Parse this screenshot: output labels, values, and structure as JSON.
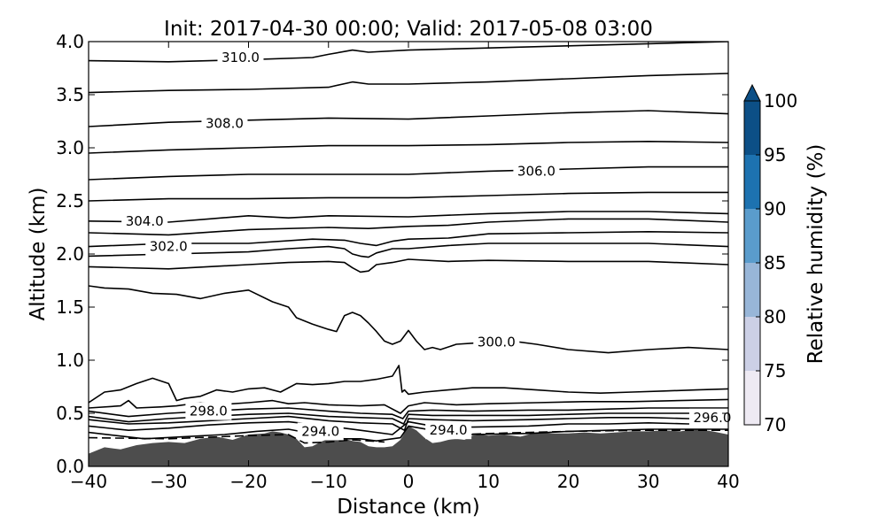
{
  "chart_data": {
    "type": "line",
    "title": "Init: 2017-04-30 00:00; Valid: 2017-05-08 03:00",
    "xlabel": "Distance (km)",
    "ylabel": "Altitude (km)",
    "xlim": [
      -40,
      40
    ],
    "ylim": [
      0.0,
      4.0
    ],
    "x_ticks": [
      -40,
      -30,
      -20,
      -10,
      0,
      10,
      20,
      30,
      40
    ],
    "x_tick_labels": [
      "−40",
      "−30",
      "−20",
      "−10",
      "0",
      "10",
      "20",
      "30",
      "40"
    ],
    "y_ticks": [
      0.0,
      0.5,
      1.0,
      1.5,
      2.0,
      2.5,
      3.0,
      3.5,
      4.0
    ],
    "y_tick_labels": [
      "0.0",
      "0.5",
      "1.0",
      "1.5",
      "2.0",
      "2.5",
      "3.0",
      "3.5",
      "4.0"
    ],
    "grid": false,
    "terrain": {
      "color": "#4d4d4d",
      "x": [
        -40,
        -38,
        -36,
        -34,
        -32,
        -30,
        -28,
        -26,
        -24,
        -22,
        -20,
        -18,
        -17,
        -16,
        -15,
        -14,
        -13,
        -12,
        -11,
        -10,
        -9,
        -8,
        -7,
        -6,
        -5,
        -4,
        -3,
        -2,
        -1,
        0,
        1,
        2,
        3,
        4,
        5,
        6,
        7,
        8,
        9,
        10,
        12,
        14,
        16,
        18,
        20,
        22,
        24,
        26,
        28,
        30,
        32,
        34,
        36,
        38,
        40
      ],
      "y": [
        0.12,
        0.18,
        0.16,
        0.2,
        0.22,
        0.23,
        0.22,
        0.26,
        0.28,
        0.25,
        0.3,
        0.31,
        0.33,
        0.32,
        0.3,
        0.26,
        0.18,
        0.19,
        0.23,
        0.26,
        0.27,
        0.26,
        0.24,
        0.23,
        0.19,
        0.18,
        0.18,
        0.19,
        0.25,
        0.38,
        0.34,
        0.27,
        0.22,
        0.23,
        0.25,
        0.26,
        0.25,
        0.29,
        0.3,
        0.29,
        0.3,
        0.28,
        0.32,
        0.31,
        0.31,
        0.32,
        0.31,
        0.32,
        0.33,
        0.33,
        0.34,
        0.33,
        0.35,
        0.33,
        0.3
      ]
    },
    "contours": [
      {
        "x": [
          -40,
          -33,
          -28,
          -23,
          -19,
          -15,
          -10,
          -8,
          -6,
          -5,
          -4,
          -2,
          -1,
          0,
          3,
          8,
          15,
          20,
          25,
          30,
          35,
          40
        ],
        "y": [
          0.32,
          0.26,
          0.28,
          0.3,
          0.33,
          0.35,
          0.28,
          0.26,
          0.26,
          0.25,
          0.24,
          0.26,
          0.27,
          0.38,
          0.34,
          0.3,
          0.31,
          0.33,
          0.34,
          0.35,
          0.35,
          0.35
        ]
      },
      {
        "x": [
          -40,
          -35,
          -30,
          -25,
          -20,
          -15,
          -10,
          -6,
          -2,
          0,
          3,
          8,
          15,
          20,
          25,
          30,
          35,
          40
        ],
        "y": [
          0.38,
          0.34,
          0.36,
          0.39,
          0.41,
          0.42,
          0.38,
          0.34,
          0.3,
          0.42,
          0.38,
          0.37,
          0.38,
          0.4,
          0.4,
          0.41,
          0.4,
          0.4
        ]
      },
      {
        "x": [
          -40,
          -35,
          -30,
          -25,
          -20,
          -15,
          -10,
          -6,
          -2,
          -0.5,
          0,
          3,
          8,
          15,
          20,
          25,
          30,
          35,
          40
        ],
        "y": [
          0.44,
          0.4,
          0.41,
          0.43,
          0.45,
          0.47,
          0.43,
          0.41,
          0.4,
          0.34,
          0.45,
          0.44,
          0.43,
          0.44,
          0.45,
          0.46,
          0.46,
          0.45,
          0.45
        ]
      },
      {
        "x": [
          -40,
          -35,
          -30,
          -25,
          -20,
          -15,
          -10,
          -6,
          -2,
          -0.6,
          0,
          3,
          8,
          15,
          20,
          25,
          30,
          35,
          40
        ],
        "y": [
          0.47,
          0.42,
          0.45,
          0.47,
          0.49,
          0.5,
          0.47,
          0.46,
          0.45,
          0.4,
          0.49,
          0.48,
          0.48,
          0.48,
          0.49,
          0.5,
          0.5,
          0.5,
          0.5
        ]
      },
      {
        "x": [
          -40,
          -35,
          -30,
          -25,
          -20,
          -15,
          -10,
          -6,
          -2,
          -0.7,
          0,
          3,
          8,
          15,
          20,
          25,
          30,
          35,
          40
        ],
        "y": [
          0.52,
          0.47,
          0.5,
          0.52,
          0.54,
          0.55,
          0.52,
          0.5,
          0.49,
          0.45,
          0.52,
          0.53,
          0.52,
          0.53,
          0.53,
          0.54,
          0.55,
          0.55,
          0.55
        ]
      },
      {
        "x": [
          -40,
          -36,
          -35,
          -34,
          -31,
          -29,
          -26,
          -24,
          -20,
          -17,
          -15,
          -13,
          -10,
          -6,
          -3,
          -1,
          0,
          2,
          6,
          10,
          16,
          22,
          28,
          34,
          40
        ],
        "y": [
          0.55,
          0.57,
          0.62,
          0.55,
          0.56,
          0.57,
          0.6,
          0.58,
          0.6,
          0.62,
          0.59,
          0.6,
          0.58,
          0.57,
          0.58,
          0.5,
          0.57,
          0.6,
          0.58,
          0.59,
          0.6,
          0.61,
          0.61,
          0.62,
          0.63
        ]
      },
      {
        "x": [
          -40,
          -38,
          -36,
          -34,
          -32,
          -30,
          -29,
          -28,
          -26,
          -24,
          -22,
          -20,
          -18,
          -16,
          -14,
          -12,
          -10,
          -8,
          -6,
          -4,
          -2,
          -1.2,
          -0.8,
          -0.5,
          0,
          2,
          5,
          8,
          12,
          16,
          20,
          24,
          28,
          32,
          36,
          40
        ],
        "y": [
          0.6,
          0.7,
          0.72,
          0.78,
          0.83,
          0.78,
          0.62,
          0.64,
          0.66,
          0.72,
          0.7,
          0.73,
          0.74,
          0.7,
          0.78,
          0.77,
          0.78,
          0.8,
          0.8,
          0.82,
          0.85,
          0.95,
          0.7,
          0.72,
          0.68,
          0.7,
          0.72,
          0.74,
          0.74,
          0.72,
          0.7,
          0.69,
          0.7,
          0.71,
          0.72,
          0.73
        ]
      },
      {
        "x": [
          -40,
          -38,
          -35,
          -32,
          -29,
          -26,
          -23,
          -20,
          -17,
          -15,
          -14,
          -12,
          -10,
          -9,
          -8,
          -7,
          -6,
          -5,
          -4,
          -3,
          -2,
          -1,
          0,
          1,
          2,
          3,
          4,
          6,
          8,
          10,
          13,
          16,
          20,
          25,
          30,
          35,
          40
        ],
        "y": [
          1.7,
          1.68,
          1.67,
          1.63,
          1.62,
          1.58,
          1.63,
          1.66,
          1.55,
          1.5,
          1.4,
          1.34,
          1.29,
          1.27,
          1.42,
          1.45,
          1.42,
          1.35,
          1.27,
          1.18,
          1.15,
          1.18,
          1.28,
          1.18,
          1.1,
          1.12,
          1.1,
          1.15,
          1.16,
          1.17,
          1.18,
          1.15,
          1.1,
          1.07,
          1.1,
          1.12,
          1.1
        ]
      },
      {
        "x": [
          -40,
          -30,
          -20,
          -15,
          -10,
          -8,
          -7,
          -6,
          -5,
          -4,
          -2,
          0,
          5,
          10,
          20,
          30,
          40
        ],
        "y": [
          1.88,
          1.86,
          1.9,
          1.92,
          1.93,
          1.92,
          1.87,
          1.83,
          1.84,
          1.9,
          1.92,
          1.95,
          1.93,
          1.94,
          1.93,
          1.93,
          1.9
        ]
      },
      {
        "x": [
          -40,
          -30,
          -20,
          -15,
          -10,
          -8,
          -7,
          -6,
          -5,
          -4,
          -2,
          0,
          5,
          10,
          20,
          30,
          40
        ],
        "y": [
          1.98,
          2.0,
          2.02,
          2.05,
          2.07,
          2.05,
          2.0,
          1.98,
          1.97,
          2.01,
          2.05,
          2.05,
          2.08,
          2.1,
          2.1,
          2.1,
          2.07
        ]
      },
      {
        "x": [
          -40,
          -30,
          -20,
          -12,
          -8,
          -6,
          -4,
          -2,
          0,
          5,
          10,
          20,
          30,
          40
        ],
        "y": [
          2.07,
          2.1,
          2.1,
          2.14,
          2.13,
          2.1,
          2.08,
          2.12,
          2.14,
          2.15,
          2.19,
          2.2,
          2.21,
          2.2
        ]
      },
      {
        "x": [
          -40,
          -30,
          -20,
          -10,
          -5,
          0,
          5,
          10,
          20,
          30,
          40
        ],
        "y": [
          2.2,
          2.18,
          2.23,
          2.25,
          2.24,
          2.26,
          2.27,
          2.3,
          2.33,
          2.33,
          2.3
        ]
      },
      {
        "x": [
          -40,
          -30,
          -25,
          -20,
          -15,
          -10,
          0,
          10,
          20,
          30,
          40
        ],
        "y": [
          2.31,
          2.3,
          2.33,
          2.36,
          2.34,
          2.36,
          2.35,
          2.38,
          2.4,
          2.4,
          2.38
        ]
      },
      {
        "x": [
          -40,
          -30,
          -20,
          -10,
          0,
          10,
          20,
          30,
          40
        ],
        "y": [
          2.5,
          2.52,
          2.52,
          2.53,
          2.53,
          2.55,
          2.57,
          2.58,
          2.58
        ]
      },
      {
        "x": [
          -40,
          -30,
          -20,
          -10,
          0,
          10,
          20,
          30,
          40
        ],
        "y": [
          2.7,
          2.73,
          2.75,
          2.75,
          2.75,
          2.78,
          2.8,
          2.82,
          2.82
        ]
      },
      {
        "x": [
          -40,
          -30,
          -20,
          -10,
          0,
          10,
          20,
          30,
          40
        ],
        "y": [
          2.95,
          2.98,
          3.0,
          3.02,
          3.02,
          3.03,
          3.05,
          3.06,
          3.05
        ]
      },
      {
        "x": [
          -40,
          -30,
          -20,
          -10,
          0,
          10,
          20,
          30,
          40
        ],
        "y": [
          3.2,
          3.24,
          3.26,
          3.28,
          3.27,
          3.3,
          3.33,
          3.35,
          3.32
        ]
      },
      {
        "x": [
          -40,
          -30,
          -20,
          -10,
          -7,
          -5,
          0,
          10,
          20,
          30,
          40
        ],
        "y": [
          3.52,
          3.54,
          3.55,
          3.57,
          3.62,
          3.6,
          3.6,
          3.62,
          3.65,
          3.68,
          3.7
        ]
      },
      {
        "x": [
          -40,
          -30,
          -20,
          -12,
          -10,
          -7,
          -5,
          0,
          10,
          20,
          30,
          40
        ],
        "y": [
          3.82,
          3.81,
          3.83,
          3.85,
          3.88,
          3.92,
          3.9,
          3.92,
          3.94,
          3.96,
          3.98,
          4.0
        ]
      }
    ],
    "dashed_contours": [
      {
        "x": [
          -40,
          -30,
          -20,
          -15,
          -13,
          -10,
          -7,
          -5,
          -3
        ],
        "y": [
          0.27,
          0.26,
          0.29,
          0.3,
          0.22,
          0.23,
          0.25,
          0.24,
          0.23
        ]
      },
      {
        "x": [
          3,
          10,
          20,
          30,
          40
        ],
        "y": [
          0.29,
          0.31,
          0.33,
          0.34,
          0.34
        ]
      }
    ],
    "annotations": [
      {
        "text": "310.0",
        "x": -21,
        "y": 3.85
      },
      {
        "text": "308.0",
        "x": -23,
        "y": 3.23
      },
      {
        "text": "306.0",
        "x": 16,
        "y": 2.78
      },
      {
        "text": "304.0",
        "x": -33,
        "y": 2.31
      },
      {
        "text": "302.0",
        "x": -30,
        "y": 2.07
      },
      {
        "text": "300.0",
        "x": 11,
        "y": 1.17
      },
      {
        "text": "298.0",
        "x": -25,
        "y": 0.52
      },
      {
        "text": "294.0",
        "x": -11,
        "y": 0.33
      },
      {
        "text": "294.0",
        "x": 5,
        "y": 0.34
      },
      {
        "text": "296.0",
        "x": 38,
        "y": 0.46
      }
    ],
    "colorbar": {
      "label": "Relative humidity (%)",
      "ticks": [
        "70",
        "75",
        "80",
        "85",
        "90",
        "95",
        "100"
      ],
      "colors": [
        "#eeeaf3",
        "#ccd0e6",
        "#98b6d8",
        "#5a9ccc",
        "#1d72b0",
        "#0c4f86"
      ],
      "extend_color": "#0c4f86"
    }
  }
}
